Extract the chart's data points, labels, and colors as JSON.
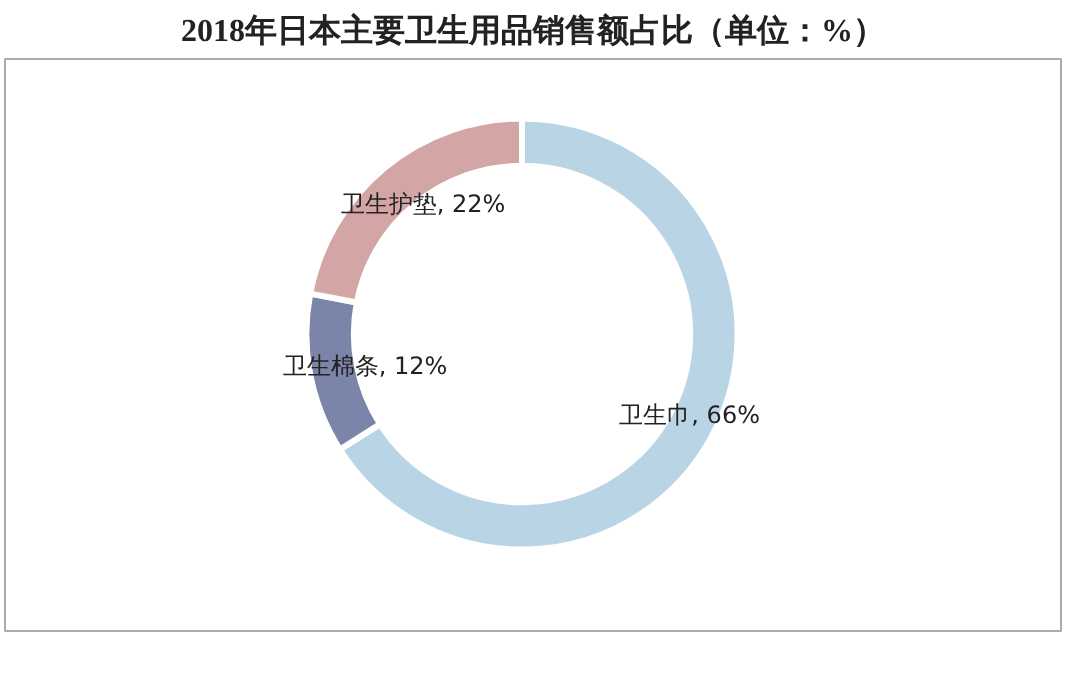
{
  "chart_data": {
    "type": "donut",
    "title": "2018年日本主要卫生用品销售额占比（单位：%）",
    "categories": [
      "卫生巾",
      "卫生棉条",
      "卫生护垫"
    ],
    "values": [
      66,
      12,
      22
    ],
    "colors": [
      "#b9d5e5",
      "#7b84a9",
      "#d3a6a5"
    ],
    "value_labels": [
      ", 66%",
      ", 12%",
      ", 22%"
    ]
  }
}
